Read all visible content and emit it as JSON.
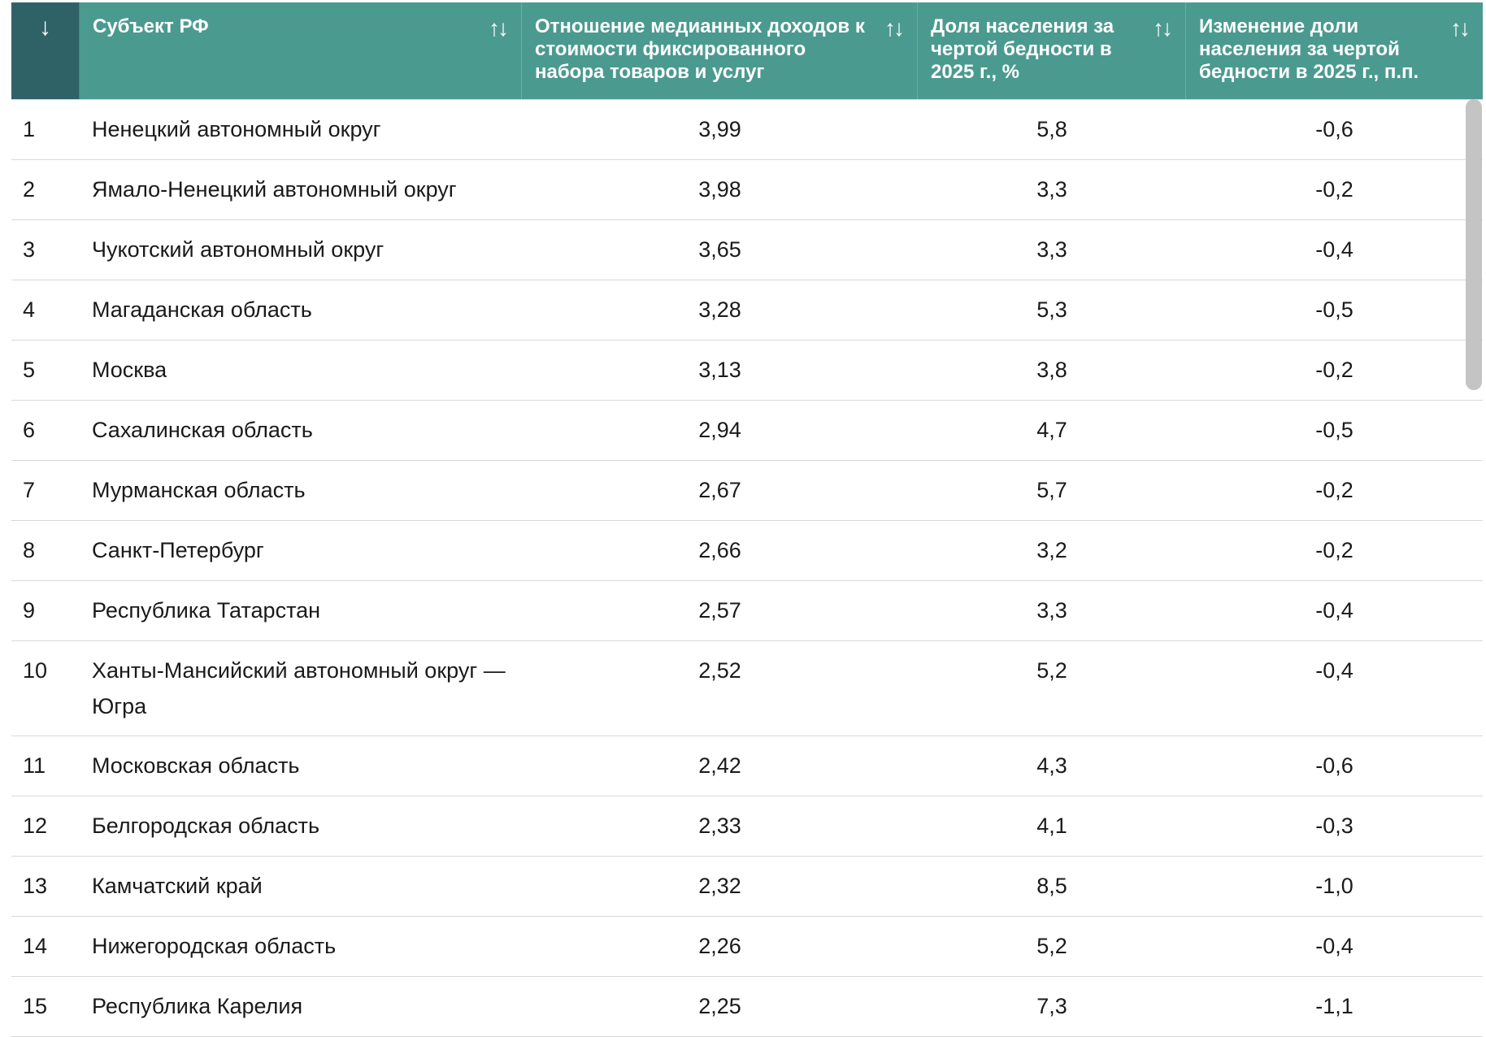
{
  "table": {
    "header": {
      "rank_sort_icon": "↓",
      "sort_icon": "↑↓",
      "columns": [
        "Субъект РФ",
        "Отношение медианных доходов к стоимости фиксированного набора товаров и услуг",
        "Доля населения за чертой бедности в 2025 г., %",
        "Изменение доли населения за чертой бедности в 2025 г., п.п."
      ]
    },
    "rows": [
      {
        "rank": "1",
        "name": "Ненецкий автономный округ",
        "ratio": "3,99",
        "share": "5,8",
        "change": "-0,6"
      },
      {
        "rank": "2",
        "name": "Ямало-Ненецкий автономный округ",
        "ratio": "3,98",
        "share": "3,3",
        "change": "-0,2"
      },
      {
        "rank": "3",
        "name": "Чукотский автономный округ",
        "ratio": "3,65",
        "share": "3,3",
        "change": "-0,4"
      },
      {
        "rank": "4",
        "name": "Магаданская область",
        "ratio": "3,28",
        "share": "5,3",
        "change": "-0,5"
      },
      {
        "rank": "5",
        "name": "Москва",
        "ratio": "3,13",
        "share": "3,8",
        "change": "-0,2"
      },
      {
        "rank": "6",
        "name": "Сахалинская область",
        "ratio": "2,94",
        "share": "4,7",
        "change": "-0,5"
      },
      {
        "rank": "7",
        "name": "Мурманская область",
        "ratio": "2,67",
        "share": "5,7",
        "change": "-0,2"
      },
      {
        "rank": "8",
        "name": "Санкт-Петербург",
        "ratio": "2,66",
        "share": "3,2",
        "change": "-0,2"
      },
      {
        "rank": "9",
        "name": "Республика Татарстан",
        "ratio": "2,57",
        "share": "3,3",
        "change": "-0,4"
      },
      {
        "rank": "10",
        "name": "Ханты-Мансийский автономный округ — Югра",
        "ratio": "2,52",
        "share": "5,2",
        "change": "-0,4"
      },
      {
        "rank": "11",
        "name": "Московская область",
        "ratio": "2,42",
        "share": "4,3",
        "change": "-0,6"
      },
      {
        "rank": "12",
        "name": "Белгородская область",
        "ratio": "2,33",
        "share": "4,1",
        "change": "-0,3"
      },
      {
        "rank": "13",
        "name": "Камчатский край",
        "ratio": "2,32",
        "share": "8,5",
        "change": "-1,0"
      },
      {
        "rank": "14",
        "name": "Нижегородская область",
        "ratio": "2,26",
        "share": "5,2",
        "change": "-0,4"
      },
      {
        "rank": "15",
        "name": "Республика Карелия",
        "ratio": "2,25",
        "share": "7,3",
        "change": "-1,1"
      }
    ]
  },
  "colors": {
    "header_bg": "#4b9a90",
    "rank_header_bg": "#2f6267",
    "scrollbar": "#c4c4c4"
  }
}
